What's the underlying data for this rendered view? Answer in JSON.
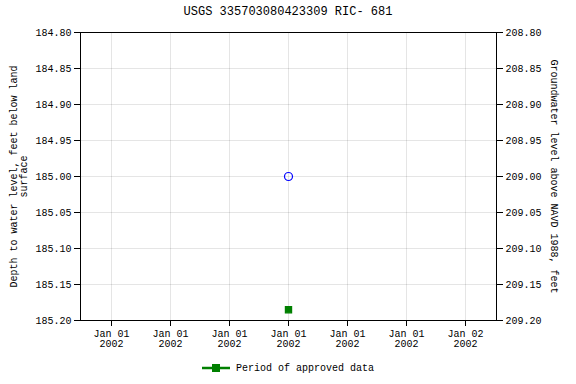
{
  "chart_data": {
    "type": "scatter",
    "title": "USGS 335703080423309 RIC- 681",
    "y_label": "Depth to water level, feet below land\nsurface",
    "y2_label": "Groundwater level above NAVD 1988, feet",
    "categories": [
      "Jan 01\n2002",
      "Jan 01\n2002",
      "Jan 01\n2002",
      "Jan 01\n2002",
      "Jan 01\n2002",
      "Jan 01\n2002",
      "Jan 02\n2002"
    ],
    "series": [
      {
        "color": "#0000ff",
        "marker": "circle",
        "values": [
          null,
          null,
          null,
          185.0,
          null,
          null,
          null
        ]
      },
      {
        "name": "Period of approved data",
        "color": "#008000",
        "marker": "square",
        "values": [
          null,
          null,
          null,
          185.185,
          null,
          null,
          null
        ]
      }
    ],
    "ylim": [
      185.2,
      184.8
    ],
    "yticks": [
      {
        "value": 184.8,
        "label": "184.80"
      },
      184.85,
      {
        "value": 184.9,
        "label": "184.90"
      },
      184.95,
      {
        "value": 185.0,
        "label": "185.00"
      },
      185.05,
      {
        "value": 185.1,
        "label": "185.10"
      },
      185.15,
      {
        "value": 185.2,
        "label": "185.20"
      }
    ],
    "y2lim": [
      209.2,
      208.8
    ],
    "y2ticks": [
      {
        "value": 209.2,
        "label": "209.20"
      },
      209.15,
      {
        "value": 209.1,
        "label": "209.10"
      },
      209.05,
      {
        "value": 209.0,
        "label": "209.00"
      },
      208.95,
      {
        "value": 208.9,
        "label": "208.90"
      },
      208.85,
      {
        "value": 208.8,
        "label": "208.80"
      }
    ],
    "grid": true
  }
}
